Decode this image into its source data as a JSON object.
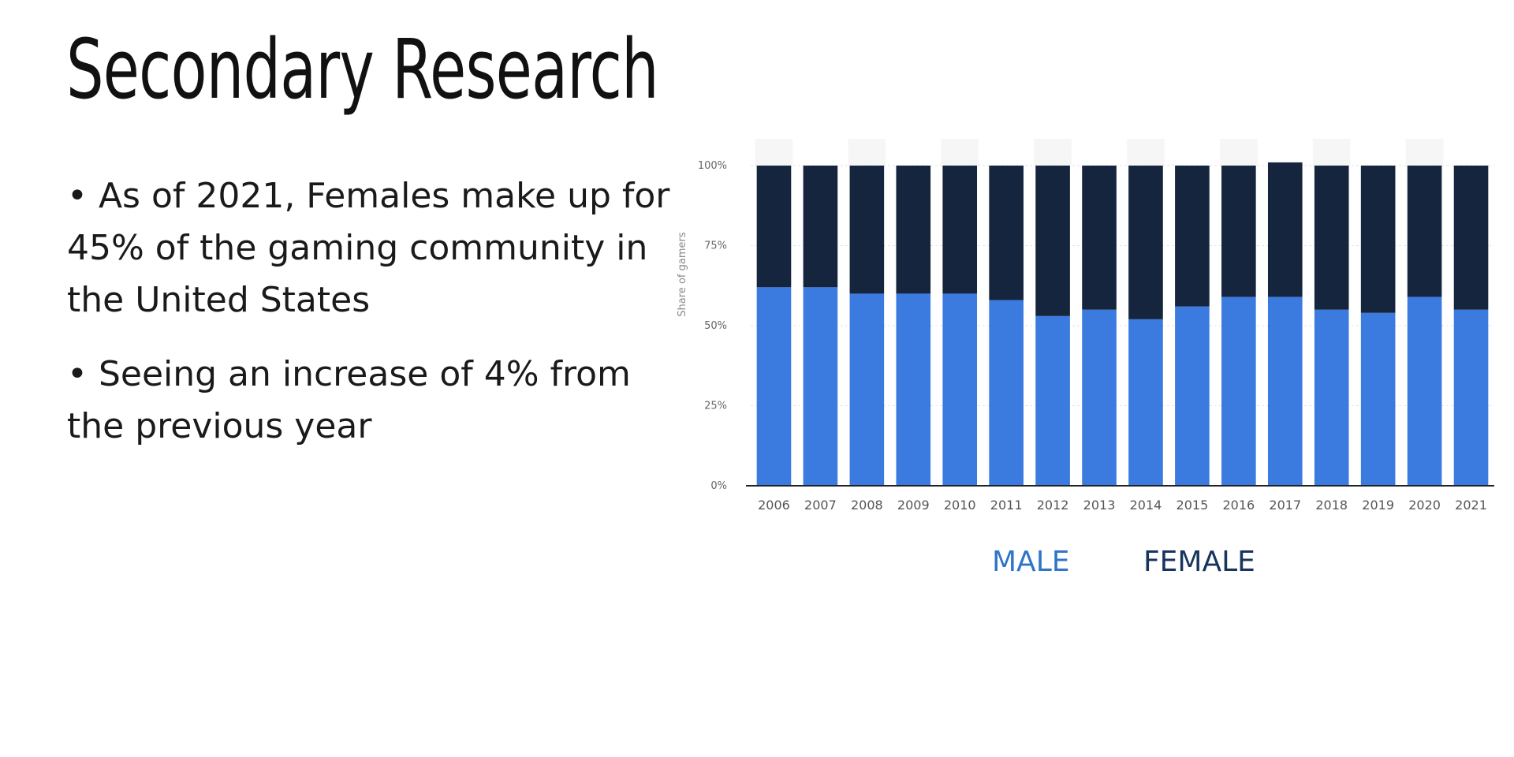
{
  "slide": {
    "title": "Secondary Research",
    "bullets": [
      "• As of 2021, Females make up for 45% of the gaming community in the United States",
      "• Seeing an increase of 4% from the previous year"
    ]
  },
  "legend": {
    "male_label": "MALE",
    "female_label": "FEMALE"
  },
  "chart_data": {
    "type": "bar",
    "stacked": true,
    "categories": [
      "2006",
      "2007",
      "2008",
      "2009",
      "2010",
      "2011",
      "2012",
      "2013",
      "2014",
      "2015",
      "2016",
      "2017",
      "2018",
      "2019",
      "2020",
      "2021"
    ],
    "series": [
      {
        "name": "MALE",
        "color": "#3b7be0",
        "values": [
          62,
          62,
          60,
          60,
          60,
          58,
          53,
          55,
          52,
          56,
          59,
          59,
          55,
          54,
          59,
          55
        ]
      },
      {
        "name": "FEMALE",
        "color": "#15253d",
        "values": [
          38,
          38,
          40,
          40,
          40,
          42,
          47,
          45,
          48,
          44,
          41,
          42,
          45,
          46,
          41,
          45
        ]
      }
    ],
    "ylabel": "Share of gamers",
    "ylim": [
      0,
      100
    ],
    "yticks": [
      "0%",
      "25%",
      "50%",
      "75%",
      "100%"
    ],
    "grid": true
  }
}
